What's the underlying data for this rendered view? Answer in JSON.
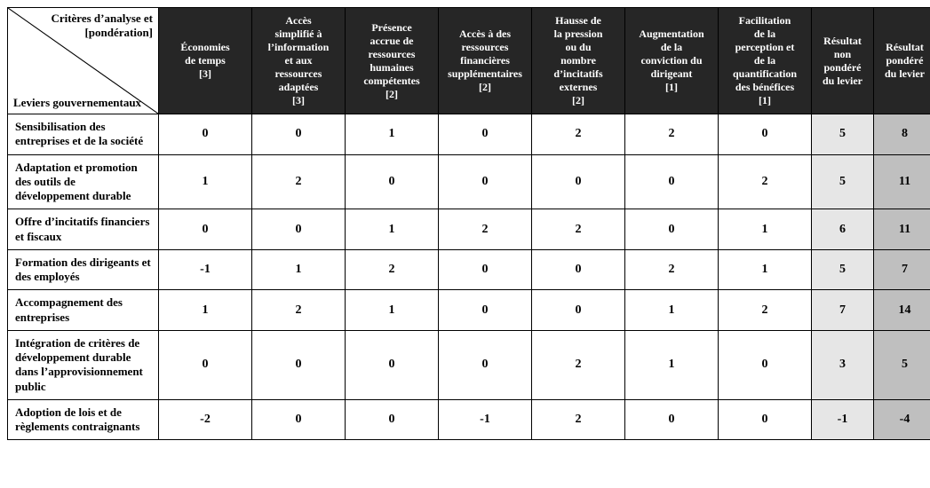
{
  "corner": {
    "top": "Critères d’analyse\net [pondération]",
    "bottom": "Leviers\ngouvernementaux"
  },
  "criteria": [
    "Économies\nde temps\n[3]",
    "Accès\nsimplifié à\nl’information\net aux\nressources\nadaptées\n[3]",
    "Présence\naccrue de\nressources\nhumaines\ncompétentes\n[2]",
    "Accès à des\nressources\nfinancières\nsupplémentaires\n[2]",
    "Hausse de\nla pression\nou du\nnombre\nd’incitatifs\nexternes\n[2]",
    "Augmentation\nde la\nconviction du\ndirigeant\n[1]",
    "Facilitation\nde la\nperception et\nde la\nquantification\ndes bénéfices\n[1]"
  ],
  "resultHeaders": {
    "unweighted": "Résultat\nnon\npondéré\ndu levier",
    "weighted": "Résultat\npondéré\ndu levier"
  },
  "rows": [
    {
      "label": "Sensibilisation des entreprises et de la société",
      "v": [
        "0",
        "0",
        "1",
        "0",
        "2",
        "2",
        "0"
      ],
      "unw": "5",
      "w": "8"
    },
    {
      "label": "Adaptation et promotion des outils de développement durable",
      "v": [
        "1",
        "2",
        "0",
        "0",
        "0",
        "0",
        "2"
      ],
      "unw": "5",
      "w": "11"
    },
    {
      "label": "Offre d’incitatifs financiers et fiscaux",
      "v": [
        "0",
        "0",
        "1",
        "2",
        "2",
        "0",
        "1"
      ],
      "unw": "6",
      "w": "11"
    },
    {
      "label": "Formation des dirigeants et des employés",
      "v": [
        "-1",
        "1",
        "2",
        "0",
        "0",
        "2",
        "1"
      ],
      "unw": "5",
      "w": "7"
    },
    {
      "label": "Accompagnement des entreprises",
      "v": [
        "1",
        "2",
        "1",
        "0",
        "0",
        "1",
        "2"
      ],
      "unw": "7",
      "w": "14"
    },
    {
      "label": "Intégration de critères de développement durable dans l’approvisionnement public",
      "v": [
        "0",
        "0",
        "0",
        "0",
        "2",
        "1",
        "0"
      ],
      "unw": "3",
      "w": "5"
    },
    {
      "label": "Adoption de lois et de règlements contraignants",
      "v": [
        "-2",
        "0",
        "0",
        "-1",
        "2",
        "0",
        "0"
      ],
      "unw": "-1",
      "w": "-4"
    }
  ]
}
